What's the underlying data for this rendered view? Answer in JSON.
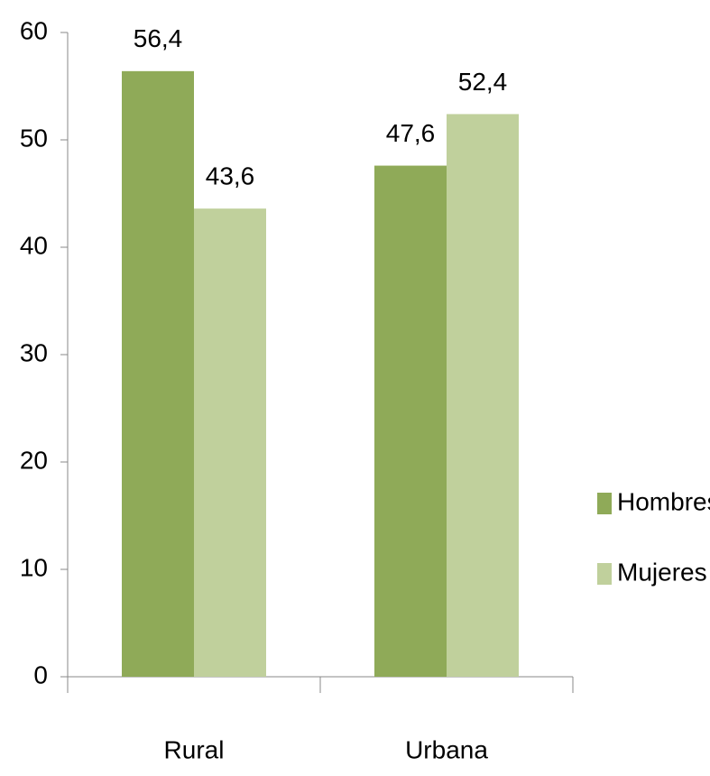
{
  "chart_data": {
    "type": "bar",
    "categories": [
      "Rural",
      "Urbana"
    ],
    "series": [
      {
        "name": "Hombres",
        "color": "#8faa58",
        "values": [
          56.4,
          47.6
        ],
        "value_labels": [
          "56,4",
          "47,6"
        ]
      },
      {
        "name": "Mujeres",
        "color": "#c0d09c",
        "values": [
          43.6,
          52.4
        ],
        "value_labels": [
          "43,6",
          "52,4"
        ]
      }
    ],
    "ylim": [
      0,
      60
    ],
    "yticks": [
      0,
      10,
      20,
      30,
      40,
      50,
      60
    ],
    "grid": false,
    "legend": "right"
  }
}
